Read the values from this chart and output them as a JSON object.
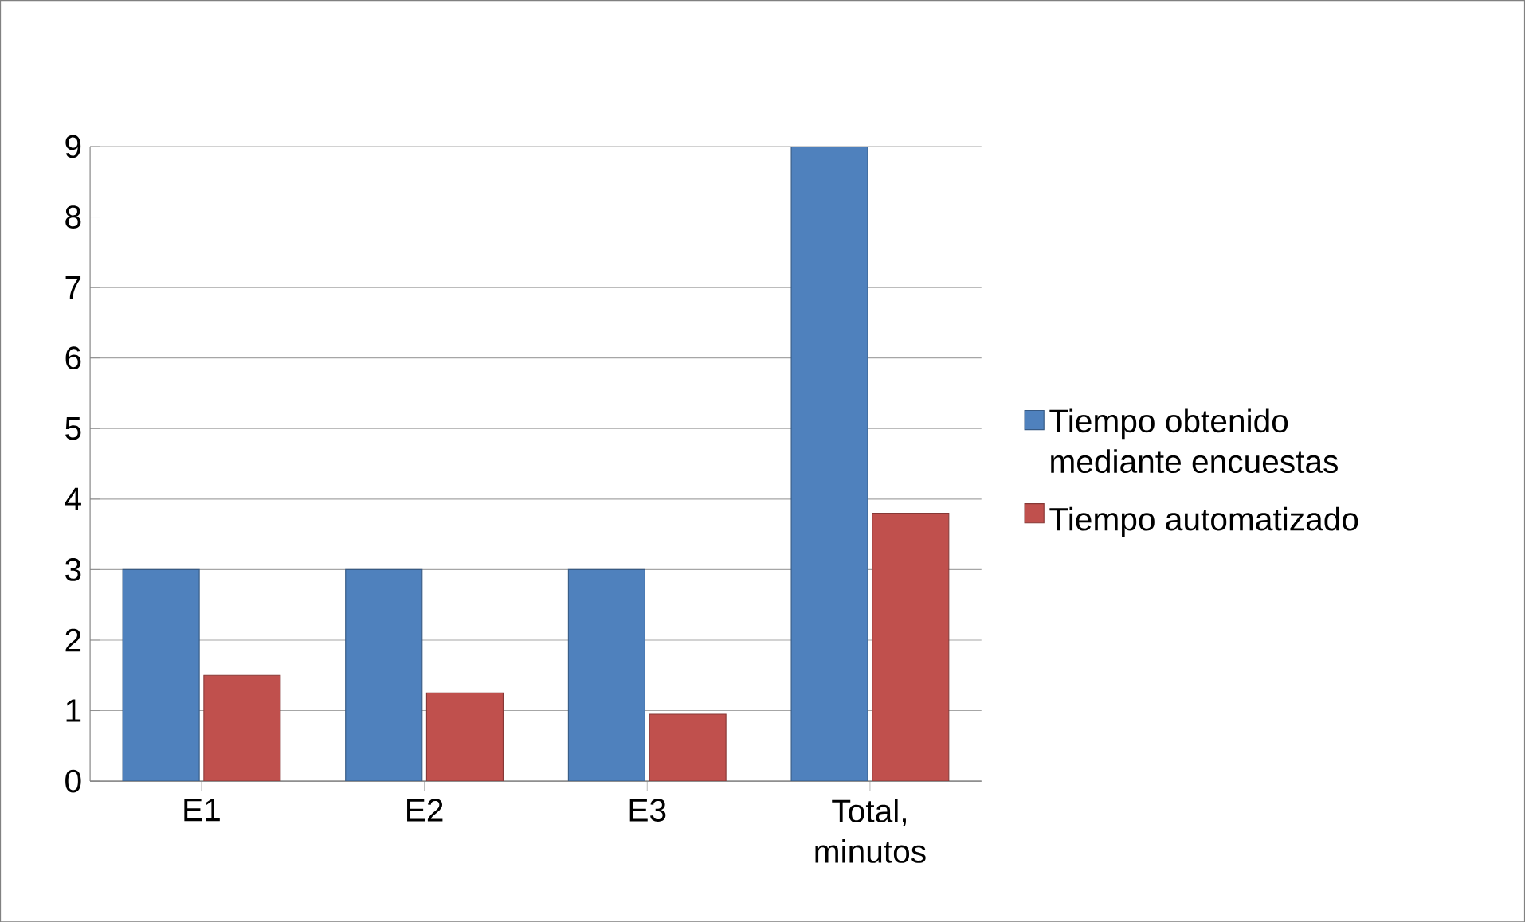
{
  "chart_data": {
    "type": "bar",
    "categories": [
      "E1",
      "E2",
      "E3",
      "Total, minutos"
    ],
    "series": [
      {
        "name": "Tiempo obtenido mediante encuestas",
        "color": "#4f81bd",
        "values": [
          3,
          3,
          3,
          9
        ]
      },
      {
        "name": "Tiempo automatizado",
        "color": "#c0504d",
        "values": [
          1.5,
          1.25,
          0.95,
          3.8
        ]
      }
    ],
    "ylim": [
      0,
      9
    ],
    "yticks": [
      0,
      1,
      2,
      3,
      4,
      5,
      6,
      7,
      8,
      9
    ],
    "grid": "y",
    "legend": "right"
  }
}
